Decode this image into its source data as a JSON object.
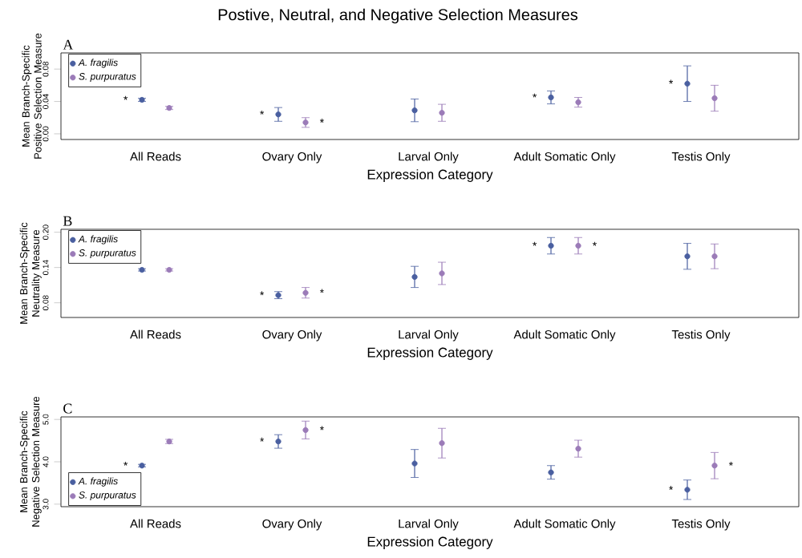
{
  "chart_data": [
    {
      "type": "scatter",
      "title": "Postive, Neutral, and Negative Selection Measures",
      "xlabel": "Expression Category",
      "ylabel": "Mean Branch-Specific Positive Selection Measure",
      "categories": [
        "All Reads",
        "Ovary Only",
        "Larval Only",
        "Adult Somatic Only",
        "Testis Only"
      ],
      "series": [
        {
          "name": "A. fragilis",
          "color": "#4a5fa0",
          "values": [
            0.042,
            0.024,
            0.029,
            0.045,
            0.062
          ],
          "errors": [
            0.002,
            0.0085,
            0.014,
            0.008,
            0.022
          ],
          "value_labels": [
            "*",
            "*",
            null,
            "*",
            "*"
          ]
        },
        {
          "name": "S. purpuratus",
          "color": "#9b7bb8",
          "values": [
            0.032,
            0.014,
            0.026,
            0.039,
            0.044
          ],
          "errors": [
            0.002,
            0.006,
            0.0105,
            0.006,
            0.016
          ],
          "value_labels": [
            null,
            "*",
            null,
            null,
            null
          ]
        }
      ],
      "ylim": [
        -0.007,
        0.1
      ],
      "yticks": [
        {
          "value": 0,
          "label": "0.00"
        },
        {
          "value": 0.04,
          "label": "0.04"
        },
        {
          "value": 0.08,
          "label": "0.08"
        }
      ],
      "legend": "top left",
      "annotations": [
        "A"
      ]
    },
    {
      "type": "scatter",
      "xlabel": "Expression Category",
      "ylabel": "Mean Branch-Specific Neutrality Measure",
      "categories": [
        "All Reads",
        "Ovary Only",
        "Larval Only",
        "Adult Somatic Only",
        "Testis Only"
      ],
      "series": [
        {
          "name": "A. fragilis",
          "color": "#4a5fa0",
          "values": [
            0.136,
            0.093,
            0.124,
            0.177,
            0.159
          ],
          "errors": [
            0.002,
            0.006,
            0.018,
            0.014,
            0.022
          ],
          "value_labels": [
            null,
            "*",
            null,
            "*",
            null
          ]
        },
        {
          "name": "S. purpuratus",
          "color": "#9b7bb8",
          "values": [
            0.136,
            0.097,
            0.13,
            0.177,
            0.159
          ],
          "errors": [
            0.002,
            0.009,
            0.019,
            0.014,
            0.021
          ],
          "value_labels": [
            null,
            "*",
            null,
            "*",
            null
          ]
        }
      ],
      "ylim": [
        0.055,
        0.205
      ],
      "yticks": [
        {
          "value": 0.08,
          "label": "0.08"
        },
        {
          "value": 0.14,
          "label": "0.14"
        },
        {
          "value": 0.2,
          "label": "0.20"
        }
      ],
      "legend": "top left",
      "annotations": [
        "B"
      ]
    },
    {
      "type": "scatter",
      "xlabel": "Expression Category",
      "ylabel": "Mean Branch-Specific Negative Selection Measure",
      "categories": [
        "All Reads",
        "Ovary Only",
        "Larval Only",
        "Adult Somatic Only",
        "Testis Only"
      ],
      "series": [
        {
          "name": "A. fragilis",
          "color": "#4a5fa0",
          "values": [
            3.91,
            4.48,
            3.96,
            3.75,
            3.34
          ],
          "errors": [
            0.03,
            0.16,
            0.33,
            0.16,
            0.23
          ],
          "value_labels": [
            "*",
            "*",
            null,
            null,
            "*"
          ]
        },
        {
          "name": "S. purpuratus",
          "color": "#9b7bb8",
          "values": [
            4.48,
            4.75,
            4.44,
            4.31,
            3.91
          ],
          "errors": [
            0.05,
            0.21,
            0.35,
            0.2,
            0.31
          ],
          "value_labels": [
            null,
            "*",
            null,
            null,
            "*"
          ]
        }
      ],
      "ylim": [
        2.94,
        5.06
      ],
      "yticks": [
        {
          "value": 3,
          "label": "3.0"
        },
        {
          "value": 4,
          "label": "4.0"
        },
        {
          "value": 5,
          "label": "5.0"
        }
      ],
      "legend": "bottom left",
      "annotations": [
        "C"
      ]
    }
  ]
}
